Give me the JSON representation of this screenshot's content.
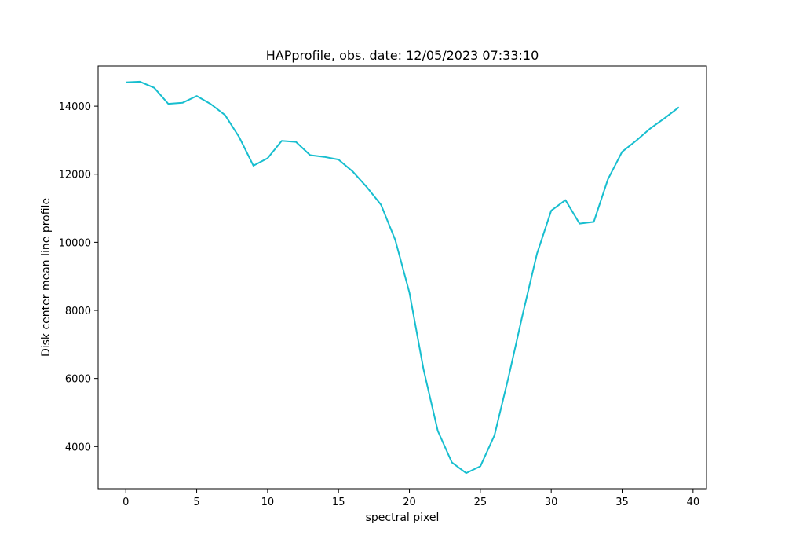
{
  "chart_data": {
    "type": "line",
    "title": "HAPprofile, obs. date: 12/05/2023 07:33:10",
    "xlabel": "spectral pixel",
    "ylabel": "Disk center mean line profile",
    "xlim": [
      -1.95,
      40.95
    ],
    "ylim": [
      2760,
      15180
    ],
    "xticks": [
      0,
      5,
      10,
      15,
      20,
      25,
      30,
      35,
      40
    ],
    "yticks": [
      4000,
      6000,
      8000,
      10000,
      12000,
      14000
    ],
    "grid": false,
    "line_color": "#17becf",
    "x": [
      0,
      1,
      2,
      3,
      4,
      5,
      6,
      7,
      8,
      9,
      10,
      11,
      12,
      13,
      14,
      15,
      16,
      17,
      18,
      19,
      20,
      21,
      22,
      23,
      24,
      25,
      26,
      27,
      28,
      29,
      30,
      31,
      32,
      33,
      34,
      35,
      36,
      37,
      38,
      39
    ],
    "y": [
      14700,
      14720,
      14540,
      14070,
      14100,
      14300,
      14060,
      13740,
      13090,
      12250,
      12470,
      12980,
      12950,
      12560,
      12510,
      12430,
      12080,
      11620,
      11100,
      10070,
      8530,
      6260,
      4460,
      3530,
      3220,
      3420,
      4330,
      6060,
      7910,
      9670,
      10930,
      11240,
      10550,
      10600,
      11850,
      12660,
      12990,
      13350,
      13650,
      13970
    ]
  }
}
